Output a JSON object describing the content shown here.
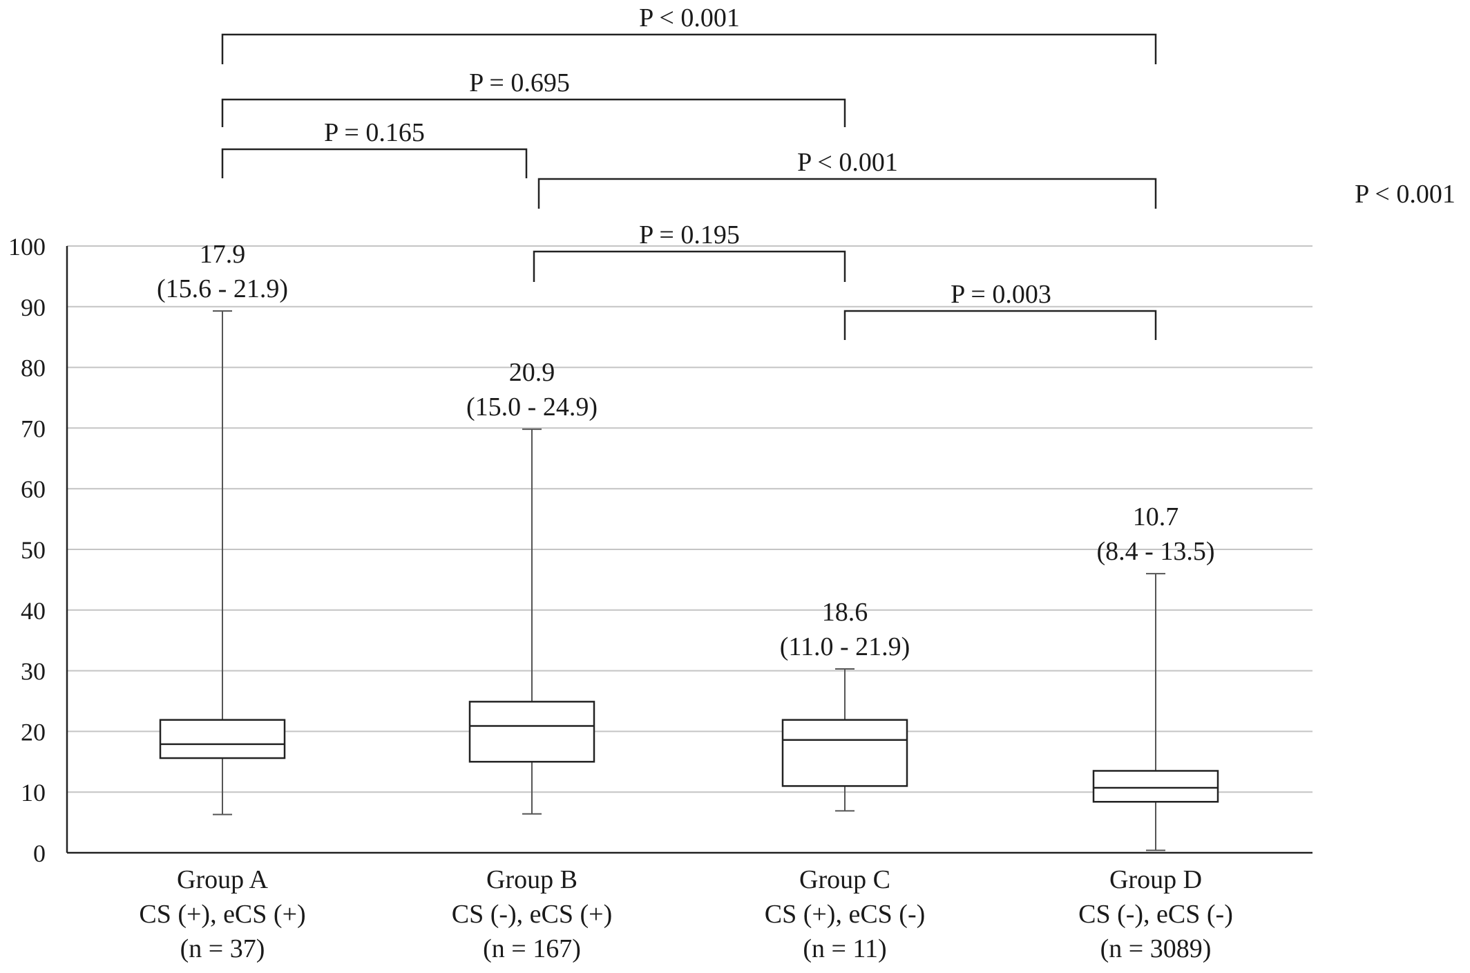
{
  "chart_data": {
    "type": "boxplot",
    "ylim": [
      0,
      100
    ],
    "y_ticks": [
      0,
      10,
      20,
      30,
      40,
      50,
      60,
      70,
      80,
      90,
      100
    ],
    "grid": true,
    "groups": [
      {
        "name": "Group A",
        "subtitle": "CS (+), eCS (+)",
        "n_label": "(n = 37)",
        "whisker_low": 6.3,
        "q1": 15.6,
        "median": 17.9,
        "q3": 21.9,
        "whisker_high": 89.3,
        "median_label": "17.9",
        "iqr_label": "(15.6 - 21.9)"
      },
      {
        "name": "Group B",
        "subtitle": "CS (-), eCS (+)",
        "n_label": "(n = 167)",
        "whisker_low": 6.4,
        "q1": 15.0,
        "median": 20.9,
        "q3": 24.9,
        "whisker_high": 69.8,
        "median_label": "20.9",
        "iqr_label": "(15.0 - 24.9)"
      },
      {
        "name": "Group C",
        "subtitle": "CS (+), eCS (-)",
        "n_label": "(n = 11)",
        "whisker_low": 6.9,
        "q1": 11.0,
        "median": 18.6,
        "q3": 21.9,
        "whisker_high": 30.3,
        "median_label": "18.6",
        "iqr_label": "(11.0 - 21.9)"
      },
      {
        "name": "Group D",
        "subtitle": "CS (-), eCS (-)",
        "n_label": "(n = 3089)",
        "whisker_low": 0.4,
        "q1": 8.4,
        "median": 10.7,
        "q3": 13.5,
        "whisker_high": 46.0,
        "median_label": "10.7",
        "iqr_label": "(8.4 - 13.5)"
      }
    ],
    "comparisons": [
      {
        "from": 0,
        "to": 3,
        "label": "P < 0.001"
      },
      {
        "from": 0,
        "to": 2,
        "label": "P = 0.695"
      },
      {
        "from": 0,
        "to": 1,
        "label": "P = 0.165"
      },
      {
        "from": 1,
        "to": 3,
        "label": "P < 0.001"
      },
      {
        "from": 1,
        "to": 2,
        "label": "P = 0.195"
      },
      {
        "from": 2,
        "to": 3,
        "label": "P = 0.003"
      }
    ],
    "extra_annotation": "P < 0.001"
  }
}
